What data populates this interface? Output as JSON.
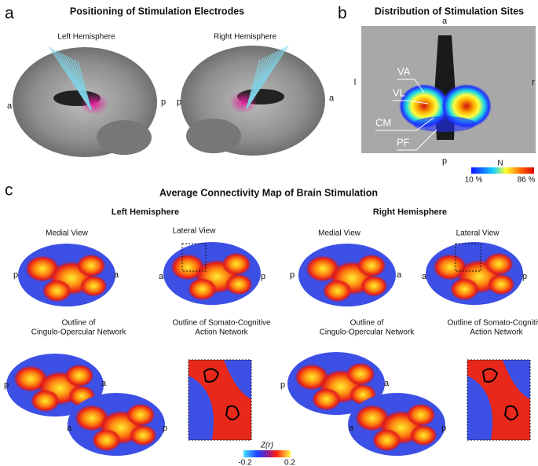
{
  "panel_a": {
    "label": "a",
    "title": "Positioning of Stimulation Electrodes",
    "hemispheres": [
      "Left Hemisphere",
      "Right Hemisphere"
    ],
    "orientation": [
      "a",
      "p",
      "p",
      "a"
    ]
  },
  "panel_b": {
    "label": "b",
    "title": "Distribution of Stimulation Sites",
    "orientation": [
      "a",
      "l",
      "r",
      "p"
    ],
    "nuclei": [
      "VA",
      "VL",
      "CM",
      "PF"
    ],
    "colorbar": {
      "title": "N",
      "min": "10 %",
      "max": "86 %"
    }
  },
  "panel_c": {
    "label": "c",
    "title": "Average Connectivity Map of Brain Stimulation",
    "hemispheres": [
      "Left Hemisphere",
      "Right Hemisphere"
    ],
    "views": [
      "Medial View",
      "Lateral View",
      "Medial View",
      "Lateral View"
    ],
    "outlines": [
      [
        "Outline of",
        "Cingulo-Opercular Network"
      ],
      [
        "Outline of Somato-Cognitive",
        "Action Network"
      ],
      [
        "Outline of",
        "Cingulo-Opercular Network"
      ],
      [
        "Outline of Somato-Cognitive",
        "Action Network"
      ]
    ],
    "orientation": [
      "p",
      "a",
      "a",
      "p",
      "p",
      "a",
      "a",
      "p",
      "p",
      "a",
      "a",
      "p",
      "p",
      "a",
      "a",
      "p"
    ],
    "colorbar": {
      "title": "Z(r)",
      "min": -0.2,
      "max": 0.2
    }
  }
}
